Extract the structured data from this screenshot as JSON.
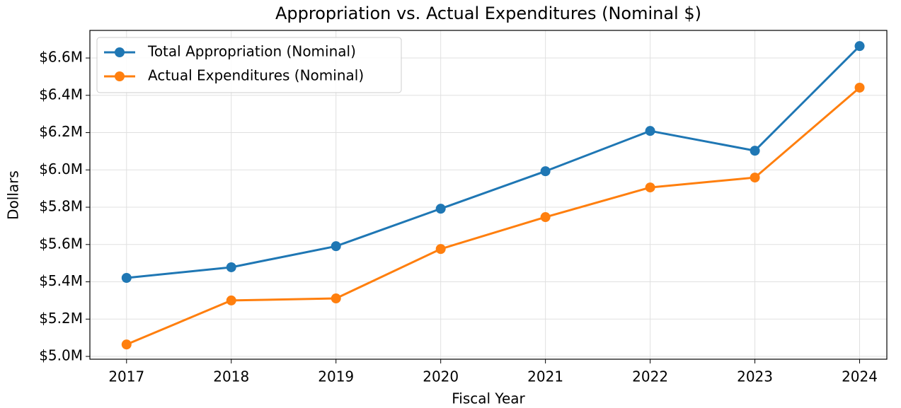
{
  "chart_data": {
    "type": "line",
    "title": "Appropriation vs. Actual Expenditures (Nominal $)",
    "xlabel": "Fiscal Year",
    "ylabel": "Dollars",
    "x": [
      2017,
      2018,
      2019,
      2020,
      2021,
      2022,
      2023,
      2024
    ],
    "series": [
      {
        "name": "Total Appropriation (Nominal)",
        "color": "#1f77b4",
        "values": [
          5421000,
          5478000,
          5591000,
          5792000,
          5993000,
          6209000,
          6103000,
          6664000
        ]
      },
      {
        "name": "Actual Expenditures (Nominal)",
        "color": "#ff7f0e",
        "values": [
          5064000,
          5300000,
          5311000,
          5576000,
          5747000,
          5906000,
          5959000,
          6441000
        ]
      }
    ],
    "xlim": [
      2016.65,
      2024.26
    ],
    "xticks": [
      2017,
      2018,
      2019,
      2020,
      2021,
      2022,
      2023,
      2024
    ],
    "ylim": [
      4985000,
      6748000
    ],
    "yticks": [
      {
        "value": 5000000,
        "label": "$5.0M"
      },
      {
        "value": 5200000,
        "label": "$5.2M"
      },
      {
        "value": 5400000,
        "label": "$5.4M"
      },
      {
        "value": 5600000,
        "label": "$5.6M"
      },
      {
        "value": 5800000,
        "label": "$5.8M"
      },
      {
        "value": 6000000,
        "label": "$6.0M"
      },
      {
        "value": 6200000,
        "label": "$6.2M"
      },
      {
        "value": 6400000,
        "label": "$6.4M"
      },
      {
        "value": 6600000,
        "label": "$6.6M"
      }
    ],
    "grid": true,
    "legend": "upper left"
  }
}
